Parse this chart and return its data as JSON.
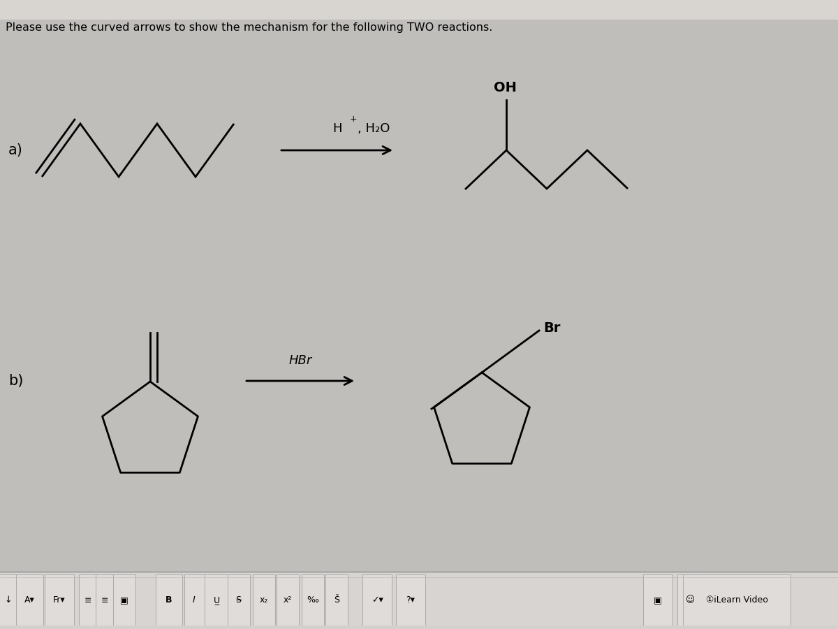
{
  "title": "Please use the curved arrows to show the mechanism for the following TWO reactions.",
  "bg_top": "#c0bebb",
  "bg_main": "#d0ceca",
  "fg": "#000000",
  "label_a": "a)",
  "label_b": "b)",
  "reagent_a": "H+, H₂O",
  "reagent_b": "HBr",
  "oh_label": "OH",
  "br_label": "Br",
  "toolbar_bg": "#dedad8",
  "toolbar_border": "#aaaaaa",
  "lw": 2.0,
  "title_fontsize": 11.5,
  "label_fontsize": 15,
  "reagent_fontsize": 13,
  "subst_fontsize": 14
}
